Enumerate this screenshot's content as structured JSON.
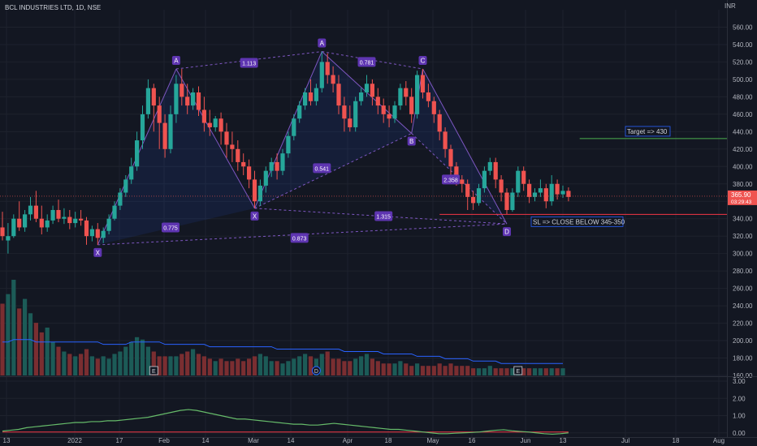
{
  "header": {
    "title": "BCL INDUSTRIES LTD, 1D, NSE",
    "currency": "INR"
  },
  "colors": {
    "background": "#131722",
    "grid": "#1e222d",
    "up": "#26a69a",
    "down": "#ef5350",
    "pattern": "#7e57c2",
    "pattern_label_bg": "#5e35b1",
    "target_line": "#4caf50",
    "sl_line": "#f23645",
    "rsi_line": "#66bb6a",
    "rsi_signal": "#f23645",
    "volume_ma": "#2962ff",
    "axis_text": "#b2b5be"
  },
  "chart_data": [
    {
      "type": "candlestick",
      "title": "BCL INDUSTRIES LTD, 1D, NSE",
      "ylabel": "INR",
      "ylim": [
        160,
        580
      ],
      "yticks": [
        160,
        180,
        200,
        220,
        240,
        260,
        280,
        300,
        320,
        340,
        360,
        380,
        400,
        420,
        440,
        460,
        480,
        500,
        520,
        540,
        560
      ],
      "ytick_labels": [
        "160.00",
        "180.00",
        "200.00",
        "220.00",
        "240.00",
        "260.00",
        "280.00",
        "300.00",
        "320.00",
        "340.00",
        "360.00",
        "380.00",
        "400.00",
        "420.00",
        "440.00",
        "460.00",
        "480.00",
        "500.00",
        "520.00",
        "540.00",
        "560.00"
      ],
      "xtick_labels": [
        "13",
        "2022",
        "17",
        "Feb",
        "14",
        "Mar",
        "14",
        "Apr",
        "18",
        "May",
        "16",
        "Jun",
        "13",
        "Jul",
        "18",
        "Aug"
      ],
      "last_price": "365.90",
      "last_price_timer": "03:29:43",
      "candles": [
        [
          330,
          348,
          320,
          315
        ],
        [
          315,
          335,
          320,
          300
        ],
        [
          320,
          345,
          340,
          318
        ],
        [
          340,
          360,
          330,
          326
        ],
        [
          330,
          350,
          345,
          325
        ],
        [
          345,
          365,
          355,
          338
        ],
        [
          355,
          372,
          340,
          336
        ],
        [
          340,
          355,
          330,
          322
        ],
        [
          330,
          345,
          338,
          325
        ],
        [
          338,
          355,
          350,
          334
        ],
        [
          350,
          362,
          340,
          336
        ],
        [
          340,
          352,
          342,
          334
        ],
        [
          342,
          350,
          335,
          328
        ],
        [
          335,
          348,
          340,
          330
        ],
        [
          340,
          350,
          338,
          332
        ],
        [
          338,
          342,
          320,
          310
        ],
        [
          320,
          332,
          328,
          314
        ],
        [
          328,
          335,
          318,
          310
        ],
        [
          318,
          330,
          326,
          312
        ],
        [
          326,
          345,
          340,
          322
        ],
        [
          340,
          360,
          355,
          338
        ],
        [
          355,
          375,
          370,
          350
        ],
        [
          370,
          390,
          385,
          365
        ],
        [
          385,
          410,
          400,
          380
        ],
        [
          400,
          440,
          430,
          395
        ],
        [
          430,
          470,
          460,
          420
        ],
        [
          460,
          500,
          490,
          455
        ],
        [
          490,
          495,
          470,
          440
        ],
        [
          470,
          480,
          450,
          420
        ],
        [
          450,
          460,
          420,
          410
        ],
        [
          420,
          470,
          460,
          415
        ],
        [
          460,
          505,
          495,
          450
        ],
        [
          495,
          512,
          480,
          470
        ],
        [
          480,
          495,
          470,
          460
        ],
        [
          470,
          490,
          485,
          465
        ],
        [
          485,
          492,
          465,
          458
        ],
        [
          465,
          480,
          450,
          440
        ],
        [
          450,
          465,
          445,
          435
        ],
        [
          445,
          458,
          455,
          440
        ],
        [
          455,
          462,
          440,
          425
        ],
        [
          440,
          450,
          425,
          410
        ],
        [
          425,
          440,
          420,
          405
        ],
        [
          420,
          430,
          405,
          395
        ],
        [
          405,
          415,
          400,
          390
        ],
        [
          400,
          408,
          385,
          375
        ],
        [
          385,
          395,
          360,
          352
        ],
        [
          360,
          385,
          378,
          355
        ],
        [
          378,
          400,
          395,
          370
        ],
        [
          395,
          410,
          405,
          388
        ],
        [
          405,
          415,
          395,
          385
        ],
        [
          395,
          420,
          415,
          390
        ],
        [
          415,
          440,
          435,
          410
        ],
        [
          435,
          460,
          455,
          430
        ],
        [
          455,
          475,
          470,
          450
        ],
        [
          470,
          490,
          485,
          465
        ],
        [
          485,
          500,
          475,
          470
        ],
        [
          475,
          495,
          490,
          470
        ],
        [
          490,
          532,
          520,
          485
        ],
        [
          520,
          530,
          505,
          495
        ],
        [
          505,
          515,
          495,
          485
        ],
        [
          495,
          505,
          470,
          460
        ],
        [
          470,
          480,
          455,
          440
        ],
        [
          455,
          470,
          445,
          440
        ],
        [
          445,
          480,
          475,
          440
        ],
        [
          475,
          490,
          485,
          470
        ],
        [
          485,
          505,
          495,
          480
        ],
        [
          495,
          500,
          480,
          470
        ],
        [
          480,
          490,
          470,
          460
        ],
        [
          470,
          478,
          460,
          450
        ],
        [
          460,
          470,
          455,
          445
        ],
        [
          455,
          475,
          470,
          450
        ],
        [
          470,
          495,
          490,
          465
        ],
        [
          490,
          498,
          480,
          470
        ],
        [
          480,
          490,
          460,
          450
        ],
        [
          460,
          510,
          505,
          455
        ],
        [
          505,
          512,
          485,
          478
        ],
        [
          485,
          495,
          475,
          468
        ],
        [
          475,
          480,
          460,
          450
        ],
        [
          460,
          465,
          440,
          430
        ],
        [
          440,
          445,
          420,
          410
        ],
        [
          420,
          425,
          400,
          390
        ],
        [
          400,
          405,
          385,
          378
        ],
        [
          385,
          390,
          380,
          370
        ],
        [
          380,
          385,
          365,
          350
        ],
        [
          365,
          372,
          358,
          350
        ],
        [
          358,
          380,
          375,
          355
        ],
        [
          375,
          400,
          395,
          370
        ],
        [
          395,
          410,
          405,
          390
        ],
        [
          405,
          410,
          385,
          375
        ],
        [
          385,
          390,
          370,
          360
        ],
        [
          370,
          375,
          350,
          345
        ],
        [
          350,
          375,
          370,
          348
        ],
        [
          370,
          400,
          395,
          365
        ],
        [
          395,
          400,
          380,
          372
        ],
        [
          380,
          385,
          365,
          358
        ],
        [
          365,
          375,
          370,
          360
        ],
        [
          370,
          385,
          375,
          365
        ],
        [
          375,
          380,
          360,
          352
        ],
        [
          360,
          390,
          380,
          355
        ],
        [
          380,
          385,
          368,
          362
        ],
        [
          368,
          378,
          372,
          364
        ],
        [
          372,
          376,
          365,
          360
        ]
      ],
      "volume": {
        "ylim": [
          0,
          40
        ],
        "values": [
          30,
          34,
          40,
          28,
          32,
          26,
          22,
          18,
          20,
          14,
          12,
          10,
          9,
          8,
          9,
          11,
          8,
          7,
          8,
          7,
          9,
          10,
          12,
          14,
          16,
          15,
          12,
          10,
          8,
          8,
          8,
          8,
          9,
          10,
          11,
          9,
          8,
          7,
          6,
          7,
          6,
          6,
          7,
          6,
          7,
          8,
          9,
          8,
          6,
          6,
          5,
          6,
          7,
          8,
          9,
          8,
          7,
          9,
          10,
          7,
          7,
          6,
          6,
          7,
          8,
          9,
          7,
          6,
          5,
          5,
          5,
          6,
          5,
          4,
          5,
          4,
          4,
          4,
          5,
          4,
          5,
          4,
          4,
          4,
          3,
          3,
          3,
          4,
          3,
          3,
          3,
          3,
          3,
          3,
          3,
          3,
          3,
          3,
          3,
          3,
          3
        ],
        "ma": [
          14,
          14,
          15,
          15,
          15,
          15,
          14,
          14,
          14,
          14,
          14,
          14,
          14,
          14,
          14,
          14,
          14,
          14,
          13,
          13,
          13,
          13,
          13,
          14,
          14,
          14,
          14,
          14,
          14,
          13,
          13,
          13,
          13,
          13,
          13,
          13,
          13,
          12,
          12,
          12,
          12,
          12,
          12,
          12,
          12,
          12,
          12,
          12,
          12,
          11,
          11,
          11,
          11,
          11,
          11,
          11,
          11,
          11,
          11,
          11,
          11,
          10,
          10,
          10,
          10,
          10,
          10,
          10,
          9,
          9,
          9,
          9,
          9,
          9,
          8,
          8,
          8,
          8,
          8,
          7,
          7,
          7,
          7,
          7,
          6,
          6,
          6,
          6,
          6,
          5,
          5,
          5,
          5,
          5,
          5,
          5,
          5,
          5,
          5,
          5,
          5
        ]
      },
      "harmonic_pattern": {
        "points": [
          {
            "label": "X",
            "candle": 17,
            "price": 310
          },
          {
            "label": "A",
            "candle": 31,
            "price": 512
          },
          {
            "label": "X",
            "candle": 45,
            "price": 352
          },
          {
            "label": "A",
            "candle": 57,
            "price": 532
          },
          {
            "label": "B",
            "candle": 73,
            "price": 438
          },
          {
            "label": "C",
            "candle": 75,
            "price": 512
          },
          {
            "label": "D",
            "candle": 90,
            "price": 334
          }
        ],
        "ratios": [
          {
            "text": "1.113",
            "candle": 44,
            "price": 519
          },
          {
            "text": "0.781",
            "candle": 65,
            "price": 520
          },
          {
            "text": "0.541",
            "candle": 57,
            "price": 398
          },
          {
            "text": "0.775",
            "candle": 30,
            "price": 330
          },
          {
            "text": "1.315",
            "candle": 68,
            "price": 343
          },
          {
            "text": "0.873",
            "candle": 53,
            "price": 318
          },
          {
            "text": "2.358",
            "candle": 80,
            "price": 385
          }
        ]
      },
      "annotations": [
        {
          "text": "Target => 430",
          "price": 432,
          "line_from_candle": 103
        },
        {
          "text": "SL => CLOSE BELOW 345-350",
          "price": 345,
          "line_from_candle": 78
        }
      ],
      "events": [
        {
          "text": "E",
          "candle": 27
        },
        {
          "text": "D",
          "candle": 56
        },
        {
          "text": "E",
          "candle": 92
        }
      ]
    },
    {
      "type": "line",
      "title": "",
      "ylim": [
        -0.2,
        3.0
      ],
      "yticks": [
        0,
        1,
        2,
        3
      ],
      "ytick_labels": [
        "0.00",
        "1.00",
        "2.00",
        "3.00"
      ],
      "series": [
        {
          "values": [
            0.1,
            0.15,
            0.2,
            0.3,
            0.35,
            0.4,
            0.45,
            0.5,
            0.55,
            0.6,
            0.6,
            0.65,
            0.65,
            0.7,
            0.7,
            0.75,
            0.8,
            0.85,
            0.9,
            1.0,
            1.1,
            1.2,
            1.3,
            1.35,
            1.3,
            1.2,
            1.1,
            1.0,
            0.9,
            0.8,
            0.8,
            0.75,
            0.7,
            0.65,
            0.6,
            0.55,
            0.5,
            0.5,
            0.45,
            0.45,
            0.5,
            0.55,
            0.5,
            0.45,
            0.4,
            0.35,
            0.3,
            0.25,
            0.2,
            0.2,
            0.15,
            0.1,
            0.05,
            0.0,
            -0.05,
            -0.05,
            -0.02,
            0.0,
            0.02,
            0.05,
            0.1,
            0.15,
            0.18,
            0.12,
            0.08,
            0.05,
            0.0,
            -0.05,
            -0.08,
            -0.05,
            0.0
          ]
        },
        {
          "values": [
            0.05,
            0.05,
            0.05,
            0.05,
            0.05,
            0.05,
            0.05,
            0.05,
            0.05,
            0.05,
            0.05,
            0.05,
            0.05,
            0.05,
            0.05,
            0.05,
            0.05,
            0.05,
            0.05,
            0.05,
            0.05,
            0.05,
            0.05,
            0.05,
            0.05,
            0.05,
            0.05,
            0.05,
            0.05,
            0.05,
            0.05,
            0.05,
            0.05,
            0.05,
            0.05,
            0.05,
            0.05,
            0.05,
            0.05,
            0.05,
            0.05,
            0.05,
            0.05,
            0.05,
            0.05,
            0.05,
            0.05,
            0.05,
            0.05,
            0.05,
            0.05,
            0.05,
            0.05,
            0.05,
            0.05,
            0.05,
            0.05,
            0.05,
            0.05,
            0.05,
            0.05,
            0.05,
            0.05,
            0.05,
            0.05,
            0.05,
            0.05,
            0.05,
            0.05,
            0.05,
            0.05
          ]
        }
      ]
    }
  ]
}
